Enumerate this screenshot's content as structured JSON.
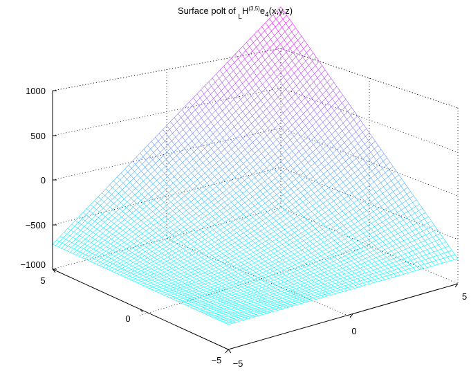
{
  "chart_data": {
    "type": "surface",
    "title": {
      "prefix": "Surface polt of ",
      "sub": "L",
      "main": "H",
      "sup": "(3,5)",
      "e": "e",
      "e_sub": "4",
      "suffix": "(x,y,z)"
    },
    "x_ticks": [
      "−5",
      "0",
      "5"
    ],
    "y_ticks": [
      "−5",
      "0",
      "5"
    ],
    "z_ticks": [
      "1000",
      "500",
      "0",
      "−500",
      "−1000"
    ],
    "xlim": [
      -5,
      5
    ],
    "ylim": [
      -5,
      5
    ],
    "zlim": [
      -1000,
      1000
    ],
    "grid": true,
    "surface": {
      "corner_values": {
        "x=-5,y=5": -720,
        "x=5,y=-5": -720,
        "x=5,y=5": 1250,
        "x=-5,y=-5": -720
      },
      "center_value": -500,
      "mesh_lines": 60
    },
    "colormap": [
      "#00ffff",
      "#ff00ff"
    ]
  }
}
